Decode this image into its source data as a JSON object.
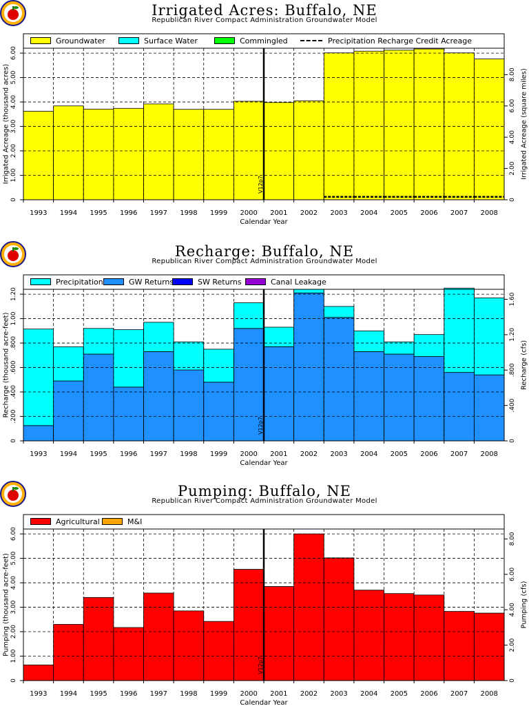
{
  "colors": {
    "groundwater": "#ffff00",
    "surface_water": "#00ffff",
    "commingled": "#00ff00",
    "precipitation": "#00ffff",
    "gw_returns": "#1e90ff",
    "sw_returns": "#0000ff",
    "canal_leakage": "#9400d3",
    "agricultural": "#ff0000",
    "mi": "#ffa500"
  },
  "marker_label": "V12p7",
  "marker_year": "2000",
  "charts": {
    "acres": {
      "title": "Irrigated Acres: Buffalo, NE",
      "subtitle": "Republican River Compact Administration Groundwater Model",
      "xlabel": "Calendar Year",
      "ylabel": "Irrigated Acreage (thousand acres)",
      "ylabel_right": "Irrigated Acreage (square miles)",
      "left_ticks": [
        "0",
        "1.00",
        "2.00",
        "3.00",
        "4.00",
        "5.00",
        "6.00"
      ],
      "right_ticks": [
        "0",
        "2.00",
        "4.00",
        "6.00",
        "8.00"
      ],
      "legend": [
        {
          "label": "Groundwater",
          "kind": "swatch",
          "color_key": "groundwater"
        },
        {
          "label": "Surface Water",
          "kind": "swatch",
          "color_key": "surface_water"
        },
        {
          "label": "Commingled",
          "kind": "swatch",
          "color_key": "commingled"
        },
        {
          "label": "Precipitation Recharge Credit Acreage",
          "kind": "line"
        }
      ]
    },
    "recharge": {
      "title": "Recharge: Buffalo, NE",
      "subtitle": "Republican River Compact Administration Groundwater Model",
      "xlabel": "Calendar Year",
      "ylabel": "Recharge (thousand acre-feet)",
      "ylabel_right": "Recharge (cfs)",
      "left_ticks": [
        "0",
        ".200",
        ".400",
        ".600",
        ".800",
        "1.00",
        "1.20"
      ],
      "right_ticks": [
        "0",
        ".400",
        ".800",
        "1.20",
        "1.60"
      ],
      "legend": [
        {
          "label": "Precipitation",
          "kind": "swatch",
          "color_key": "precipitation"
        },
        {
          "label": "GW Returns",
          "kind": "swatch",
          "color_key": "gw_returns"
        },
        {
          "label": "SW Returns",
          "kind": "swatch",
          "color_key": "sw_returns"
        },
        {
          "label": "Canal Leakage",
          "kind": "swatch",
          "color_key": "canal_leakage"
        }
      ]
    },
    "pumping": {
      "title": "Pumping: Buffalo, NE",
      "subtitle": "Republican River Compact Administration Groundwater Model",
      "xlabel": "Calendar Year",
      "ylabel": "Pumping (thousand acre-feet)",
      "ylabel_right": "Pumping (cfs)",
      "left_ticks": [
        "0",
        "1.00",
        "2.00",
        "3.00",
        "4.00",
        "5.00",
        "6.00"
      ],
      "right_ticks": [
        "0",
        "2.00",
        "4.00",
        "6.00",
        "8.00"
      ],
      "legend": [
        {
          "label": "Agricultural",
          "kind": "swatch",
          "color_key": "agricultural"
        },
        {
          "label": "M&I",
          "kind": "swatch",
          "color_key": "mi"
        }
      ]
    }
  },
  "chart_data": [
    {
      "type": "bar",
      "stacked": true,
      "title": "Irrigated Acres: Buffalo, NE",
      "subtitle": "Republican River Compact Administration Groundwater Model",
      "xlabel": "Calendar Year",
      "ylabel": "Irrigated Acreage (thousand acres)",
      "ylabel_right": "Irrigated Acreage (square miles)",
      "categories": [
        "1993",
        "1994",
        "1995",
        "1996",
        "1997",
        "1998",
        "1999",
        "2000",
        "2001",
        "2002",
        "2003",
        "2004",
        "2005",
        "2006",
        "2007",
        "2008"
      ],
      "ylim": [
        0,
        6.2
      ],
      "ylim_right": [
        0,
        9.69
      ],
      "grid": true,
      "legend_position": "top",
      "series": [
        {
          "name": "Groundwater",
          "values": [
            3.62,
            3.84,
            3.71,
            3.74,
            3.92,
            3.7,
            3.7,
            4.03,
            3.98,
            4.05,
            6.01,
            6.08,
            6.12,
            6.17,
            6.01,
            5.76
          ]
        },
        {
          "name": "Surface Water",
          "values": [
            0,
            0,
            0,
            0,
            0,
            0,
            0,
            0,
            0,
            0,
            0,
            0,
            0,
            0,
            0,
            0
          ]
        },
        {
          "name": "Commingled",
          "values": [
            0,
            0,
            0,
            0,
            0,
            0,
            0,
            0,
            0,
            0,
            0,
            0,
            0,
            0,
            0,
            0
          ]
        }
      ],
      "precipitation_recharge_credit_acreage": [
        0,
        0,
        0,
        0,
        0,
        0,
        0,
        0,
        0,
        0,
        0.12,
        0.12,
        0.12,
        0.12,
        0.12,
        0.12
      ],
      "annotations": [
        {
          "text": "V12p7",
          "x": "2000"
        }
      ]
    },
    {
      "type": "bar",
      "stacked": true,
      "title": "Recharge: Buffalo, NE",
      "subtitle": "Republican River Compact Administration Groundwater Model",
      "xlabel": "Calendar Year",
      "ylabel": "Recharge (thousand acre-feet)",
      "ylabel_right": "Recharge (cfs)",
      "categories": [
        "1993",
        "1994",
        "1995",
        "1996",
        "1997",
        "1998",
        "1999",
        "2000",
        "2001",
        "2002",
        "2003",
        "2004",
        "2005",
        "2006",
        "2007",
        "2008"
      ],
      "ylim": [
        0,
        1.24
      ],
      "ylim_right": [
        0,
        1.713
      ],
      "grid": true,
      "legend_position": "top",
      "series": [
        {
          "name": "GW Returns",
          "values": [
            0.125,
            0.49,
            0.71,
            0.44,
            0.73,
            0.58,
            0.48,
            0.92,
            0.77,
            1.21,
            1.01,
            0.73,
            0.71,
            0.69,
            0.56,
            0.54
          ]
        },
        {
          "name": "Precipitation",
          "values": [
            0.79,
            0.28,
            0.21,
            0.47,
            0.24,
            0.23,
            0.27,
            0.21,
            0.16,
            0.03,
            0.09,
            0.17,
            0.1,
            0.18,
            0.69,
            0.63
          ]
        },
        {
          "name": "SW Returns",
          "values": [
            0,
            0,
            0,
            0,
            0,
            0,
            0,
            0,
            0,
            0,
            0,
            0,
            0,
            0,
            0,
            0
          ]
        },
        {
          "name": "Canal Leakage",
          "values": [
            0,
            0,
            0,
            0,
            0,
            0,
            0,
            0,
            0,
            0,
            0,
            0,
            0,
            0,
            0,
            0
          ]
        }
      ],
      "annotations": [
        {
          "text": "V12p7",
          "x": "2000"
        }
      ]
    },
    {
      "type": "bar",
      "stacked": true,
      "title": "Pumping: Buffalo, NE",
      "subtitle": "Republican River Compact Administration Groundwater Model",
      "xlabel": "Calendar Year",
      "ylabel": "Pumping (thousand acre-feet)",
      "ylabel_right": "Pumping (cfs)",
      "categories": [
        "1993",
        "1994",
        "1995",
        "1996",
        "1997",
        "1998",
        "1999",
        "2000",
        "2001",
        "2002",
        "2003",
        "2004",
        "2005",
        "2006",
        "2007",
        "2008"
      ],
      "ylim": [
        0,
        6.2
      ],
      "ylim_right": [
        0,
        8.56
      ],
      "grid": true,
      "legend_position": "top",
      "series": [
        {
          "name": "Agricultural",
          "values": [
            0.64,
            2.3,
            3.4,
            2.17,
            3.58,
            2.85,
            2.42,
            4.55,
            3.85,
            6.0,
            5.02,
            3.7,
            3.56,
            3.5,
            2.83,
            2.76
          ]
        },
        {
          "name": "M&I",
          "values": [
            0,
            0,
            0,
            0,
            0,
            0,
            0,
            0,
            0,
            0,
            0,
            0,
            0,
            0,
            0,
            0
          ]
        }
      ],
      "annotations": [
        {
          "text": "V12p7",
          "x": "2000"
        }
      ]
    }
  ]
}
